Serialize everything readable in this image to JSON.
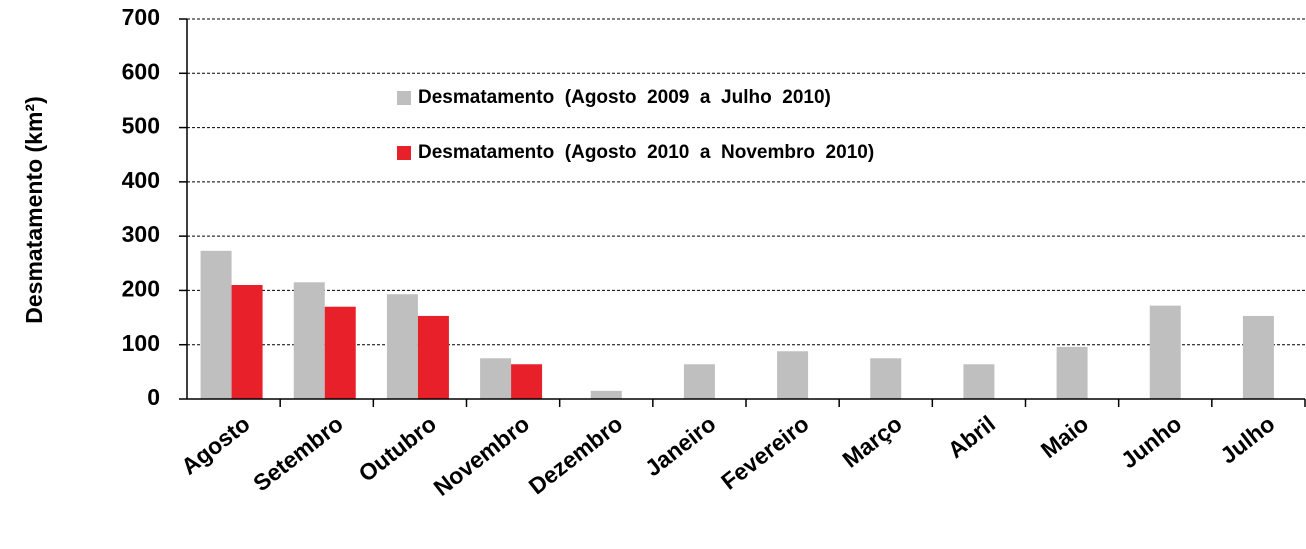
{
  "chart_data": {
    "type": "bar",
    "y_label": "Desmatamento (km²)",
    "categories": [
      "Agosto",
      "Setembro",
      "Outubro",
      "Novembro",
      "Dezembro",
      "Janeiro",
      "Fevereiro",
      "Março",
      "Abril",
      "Maio",
      "Junho",
      "Julho"
    ],
    "series": [
      {
        "name": "Desmatamento  (Agosto  2009  a  Julho  2010)",
        "color": "#bfbfbf",
        "values": [
          273,
          215,
          193,
          75,
          15,
          64,
          88,
          75,
          64,
          96,
          172,
          153
        ]
      },
      {
        "name": "Desmatamento  (Agosto  2010  a  Novembro  2010)",
        "color": "#e8202a",
        "values": [
          210,
          170,
          153,
          64,
          null,
          null,
          null,
          null,
          null,
          null,
          null,
          null
        ]
      }
    ],
    "ylim": [
      0,
      700
    ],
    "yticks": [
      0,
      100,
      200,
      300,
      400,
      500,
      600,
      700
    ],
    "grid": true
  }
}
